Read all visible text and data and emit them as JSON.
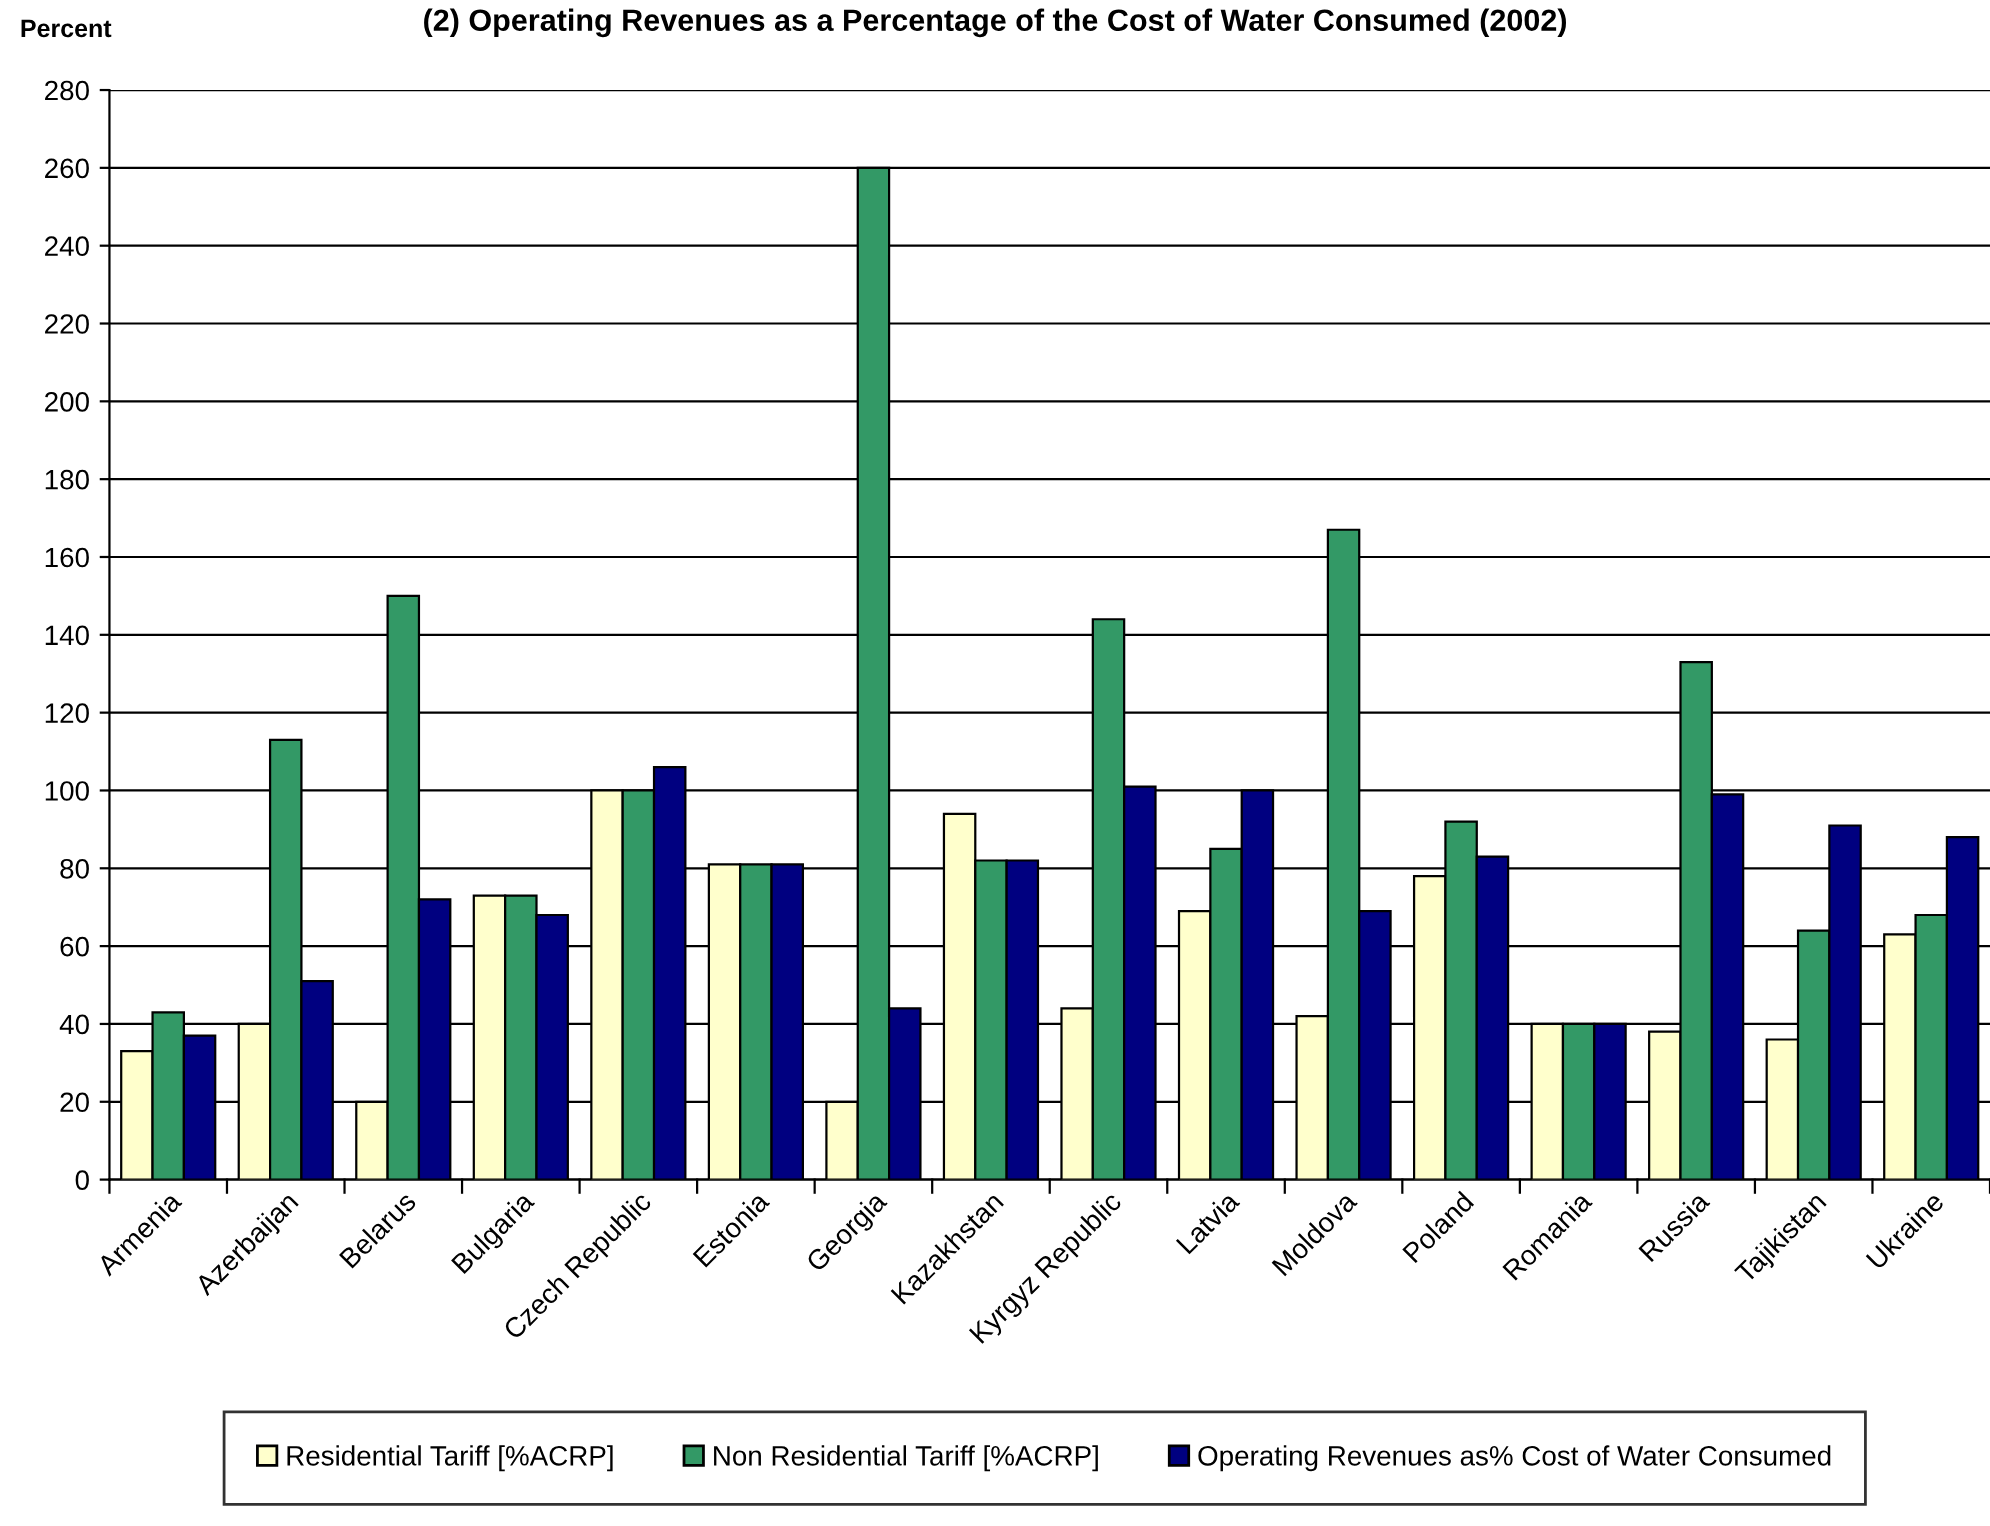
{
  "chart_data": {
    "type": "bar",
    "title": "(2) Operating Revenues as a Percentage of the Cost of Water Consumed (2002)",
    "ylabel": "Percent",
    "categories": [
      "Armenia",
      "Azerbaijan",
      "Belarus",
      "Bulgaria",
      "Czech Republic",
      "Estonia",
      "Georgia",
      "Kazakhstan",
      "Kyrgyz Republic",
      "Latvia",
      "Moldova",
      "Poland",
      "Romania",
      "Russia",
      "Tajikistan",
      "Ukraine"
    ],
    "series": [
      {
        "name": "Residential Tariff [%ACRP]",
        "color": "#ffffcc",
        "values": [
          33,
          40,
          20,
          73,
          100,
          81,
          20,
          94,
          44,
          69,
          42,
          78,
          40,
          38,
          36,
          63
        ]
      },
      {
        "name": "Non Residential Tariff [%ACRP]",
        "color": "#339966",
        "values": [
          43,
          113,
          150,
          73,
          100,
          81,
          260,
          82,
          144,
          85,
          167,
          92,
          40,
          133,
          64,
          68
        ]
      },
      {
        "name": "Operating Revenues as% Cost of Water Consumed",
        "color": "#000080",
        "values": [
          37,
          51,
          72,
          68,
          106,
          81,
          44,
          82,
          101,
          100,
          69,
          83,
          40,
          99,
          91,
          88
        ]
      }
    ],
    "ylim": [
      0,
      280
    ],
    "yticks": [
      0,
      20,
      40,
      60,
      80,
      100,
      120,
      140,
      160,
      180,
      200,
      220,
      240,
      260,
      280
    ],
    "grid": "y",
    "legend": "bottom"
  }
}
